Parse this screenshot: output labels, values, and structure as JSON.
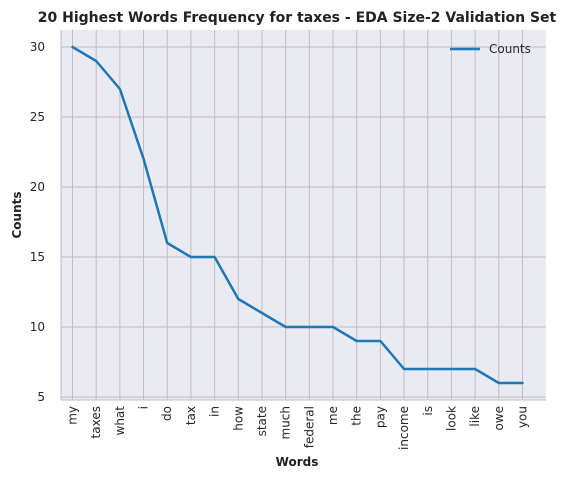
{
  "chart_data": {
    "type": "line",
    "title": "20 Highest Words Frequency for taxes - EDA Size-2 Validation Set",
    "xlabel": "Words",
    "ylabel": "Counts",
    "categories": [
      "my",
      "taxes",
      "what",
      "i",
      "do",
      "tax",
      "in",
      "how",
      "state",
      "much",
      "federal",
      "me",
      "the",
      "pay",
      "income",
      "is",
      "look",
      "like",
      "owe",
      "you"
    ],
    "series": [
      {
        "name": "Counts",
        "values": [
          30,
          29,
          27,
          22,
          16,
          15,
          15,
          12,
          11,
          10,
          10,
          10,
          9,
          9,
          7,
          7,
          7,
          7,
          6,
          6
        ]
      }
    ],
    "ylim": [
      5,
      31
    ],
    "yticks": [
      5,
      10,
      15,
      20,
      25,
      30
    ],
    "grid": true,
    "legend": "top-right",
    "colors": {
      "line": "#1f77b4",
      "background": "#eaeaf2",
      "grid": "#bfbfbf",
      "axis": "#bfbfbf"
    }
  }
}
